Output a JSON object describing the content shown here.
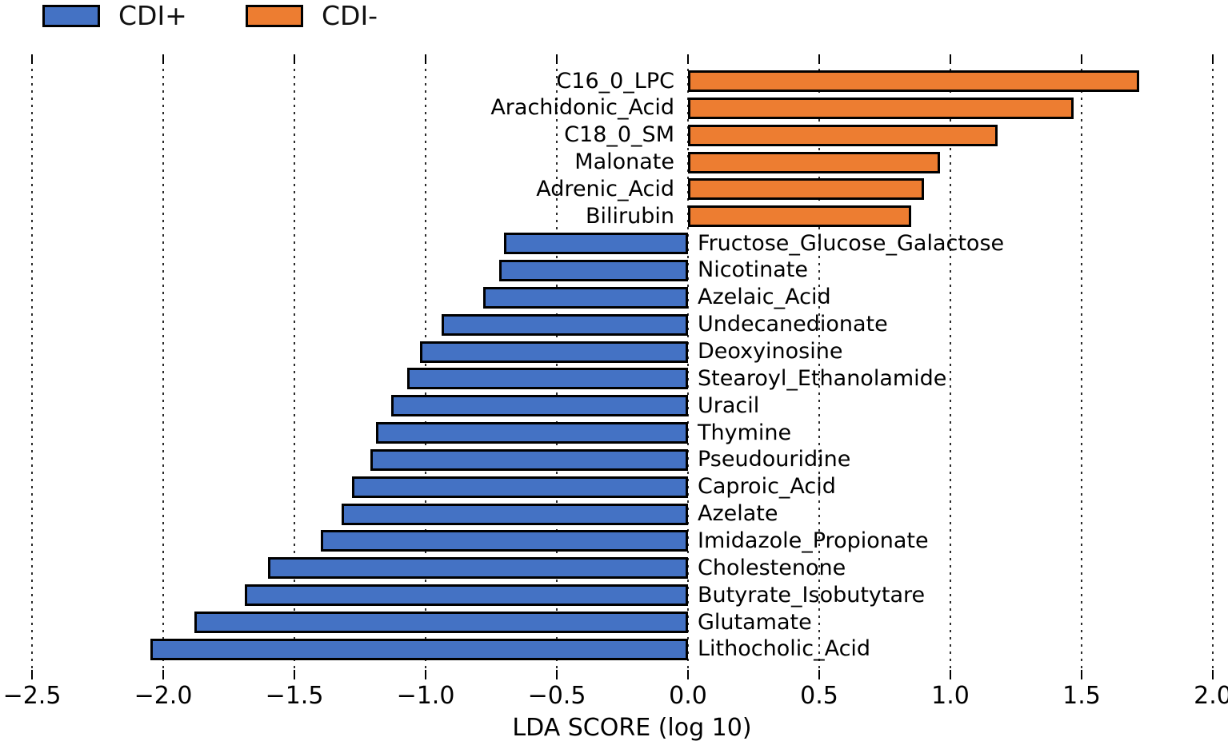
{
  "legend": {
    "items": [
      {
        "label": "CDI+",
        "group": "CDI+"
      },
      {
        "label": "CDI-",
        "group": "CDI-"
      }
    ]
  },
  "x_axis": {
    "title": "LDA SCORE (log 10)",
    "tick_labels": [
      "−2.5",
      "−2.0",
      "−1.5",
      "−1.0",
      "−0.5",
      "0.0",
      "0.5",
      "1.0",
      "1.5",
      "2.0"
    ]
  },
  "colors": {
    "CDI+": "#4472C4",
    "CDI-": "#ED7D31",
    "bar_border": "#000000",
    "gridline": "#2b2b2b"
  },
  "chart_data": {
    "type": "bar",
    "orientation": "horizontal",
    "title": "",
    "xlabel": "LDA SCORE (log 10)",
    "ylabel": "",
    "xlim": [
      -2.5,
      2.0
    ],
    "xticks": [
      -2.5,
      -2.0,
      -1.5,
      -1.0,
      -0.5,
      0.0,
      0.5,
      1.0,
      1.5,
      2.0
    ],
    "grid": "vertical dashed gridlines at every tick",
    "legend_position": "top-left",
    "series": [
      {
        "name": "CDI-",
        "color": "#ED7D31",
        "bars": [
          {
            "label": "C16_0_LPC",
            "value": 1.72
          },
          {
            "label": "Arachidonic_Acid",
            "value": 1.47
          },
          {
            "label": "C18_0_SM",
            "value": 1.18
          },
          {
            "label": "Malonate",
            "value": 0.96
          },
          {
            "label": "Adrenic_Acid",
            "value": 0.9
          },
          {
            "label": "Bilirubin",
            "value": 0.85
          }
        ]
      },
      {
        "name": "CDI+",
        "color": "#4472C4",
        "bars": [
          {
            "label": "Fructose_Glucose_Galactose",
            "value": -0.7
          },
          {
            "label": "Nicotinate",
            "value": -0.72
          },
          {
            "label": "Azelaic_Acid",
            "value": -0.78
          },
          {
            "label": "Undecanedionate",
            "value": -0.94
          },
          {
            "label": "Deoxyinosine",
            "value": -1.02
          },
          {
            "label": "Stearoyl_Ethanolamide",
            "value": -1.07
          },
          {
            "label": "Uracil",
            "value": -1.13
          },
          {
            "label": "Thymine",
            "value": -1.19
          },
          {
            "label": "Pseudouridine",
            "value": -1.21
          },
          {
            "label": "Caproic_Acid",
            "value": -1.28
          },
          {
            "label": "Azelate",
            "value": -1.32
          },
          {
            "label": "Imidazole_Propionate",
            "value": -1.4
          },
          {
            "label": "Cholestenone",
            "value": -1.6
          },
          {
            "label": "Butyrate_Isobutytare",
            "value": -1.69
          },
          {
            "label": "Glutamate",
            "value": -1.88
          },
          {
            "label": "Lithocholic_Acid",
            "value": -2.05
          }
        ]
      }
    ]
  }
}
